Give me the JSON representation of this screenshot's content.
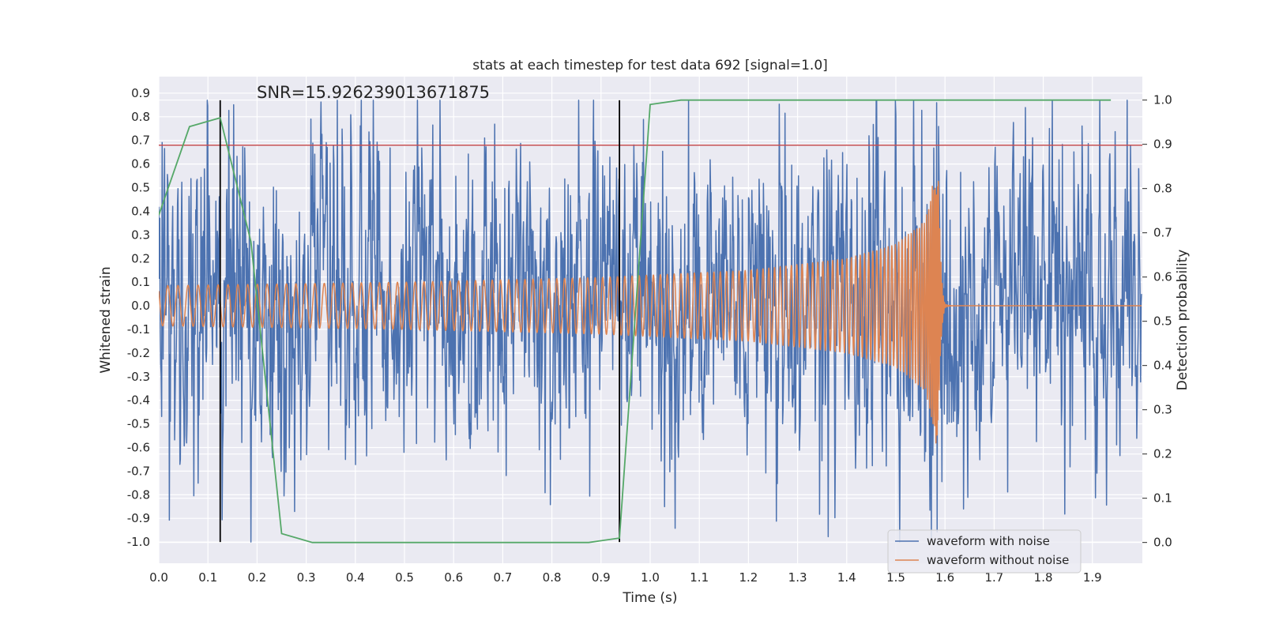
{
  "chart_data": {
    "type": "line",
    "title": "stats at each timestep for test data 692 [signal=1.0]",
    "annotation": "SNR=15.926239013671875",
    "xlabel": "Time (s)",
    "ylabel": "Whitened strain",
    "y2label": "Detection probability",
    "xlim": [
      0.0,
      2.0
    ],
    "ylim": [
      -1.09,
      0.97
    ],
    "y2lim": [
      -0.047,
      1.053
    ],
    "x_ticks": [
      "0.0",
      "0.1",
      "0.2",
      "0.3",
      "0.4",
      "0.5",
      "0.6",
      "0.7",
      "0.8",
      "0.9",
      "1.0",
      "1.1",
      "1.2",
      "1.3",
      "1.4",
      "1.5",
      "1.6",
      "1.7",
      "1.8",
      "1.9"
    ],
    "y_ticks": [
      "0.9",
      "0.8",
      "0.7",
      "0.6",
      "0.5",
      "0.4",
      "0.3",
      "0.2",
      "0.1",
      "0.0",
      "-0.1",
      "-0.2",
      "-0.3",
      "-0.4",
      "-0.5",
      "-0.6",
      "-0.7",
      "-0.8",
      "-0.9",
      "-1.0"
    ],
    "y2_ticks": [
      "1.0",
      "0.9",
      "0.8",
      "0.7",
      "0.6",
      "0.5",
      "0.4",
      "0.3",
      "0.2",
      "0.1",
      "0.0"
    ],
    "grid": true,
    "legend_position": "lower-right",
    "series": [
      {
        "name": "waveform with noise",
        "color": "#4c72b0",
        "kind": "noisy_strain",
        "sample_rate": 1024,
        "amplitude_range": [
          -1.0,
          0.87
        ]
      },
      {
        "name": "waveform without noise",
        "color": "#dd8452",
        "kind": "chirp",
        "sample_rate": 2048,
        "envelope": [
          [
            0.0,
            0.085
          ],
          [
            0.5,
            0.1
          ],
          [
            0.9,
            0.12
          ],
          [
            1.2,
            0.15
          ],
          [
            1.4,
            0.2
          ],
          [
            1.5,
            0.26
          ],
          [
            1.56,
            0.36
          ],
          [
            1.585,
            0.62
          ],
          [
            1.6,
            0.05
          ],
          [
            1.62,
            0.01
          ],
          [
            2.0,
            0.0
          ]
        ]
      },
      {
        "color": "#55a868",
        "kind": "detection_probability",
        "axis": "right",
        "x": [
          0.0,
          0.0625,
          0.125,
          0.1875,
          0.25,
          0.3125,
          0.375,
          0.4375,
          0.5,
          0.5625,
          0.625,
          0.6875,
          0.75,
          0.8125,
          0.875,
          0.9375,
          1.0,
          1.0625,
          1.125,
          1.1875,
          1.25,
          1.3125,
          1.375,
          1.4375,
          1.5,
          1.5625,
          1.625,
          1.6875,
          1.75,
          1.8125,
          1.875,
          1.9375
        ],
        "y": [
          0.74,
          0.94,
          0.96,
          0.68,
          0.02,
          0.0,
          0.0,
          0.0,
          0.0,
          0.0,
          0.0,
          0.0,
          0.0,
          0.0,
          0.0,
          0.01,
          0.99,
          1.0,
          1.0,
          1.0,
          1.0,
          1.0,
          1.0,
          1.0,
          1.0,
          1.0,
          1.0,
          1.0,
          1.0,
          1.0,
          1.0,
          1.0
        ]
      },
      {
        "color": "#c44e52",
        "kind": "threshold",
        "axis": "left",
        "y": 0.68
      }
    ],
    "vlines": {
      "color": "#000000",
      "x": [
        0.125,
        0.9375
      ],
      "ymin": -1.0,
      "ymax": 0.87
    }
  }
}
